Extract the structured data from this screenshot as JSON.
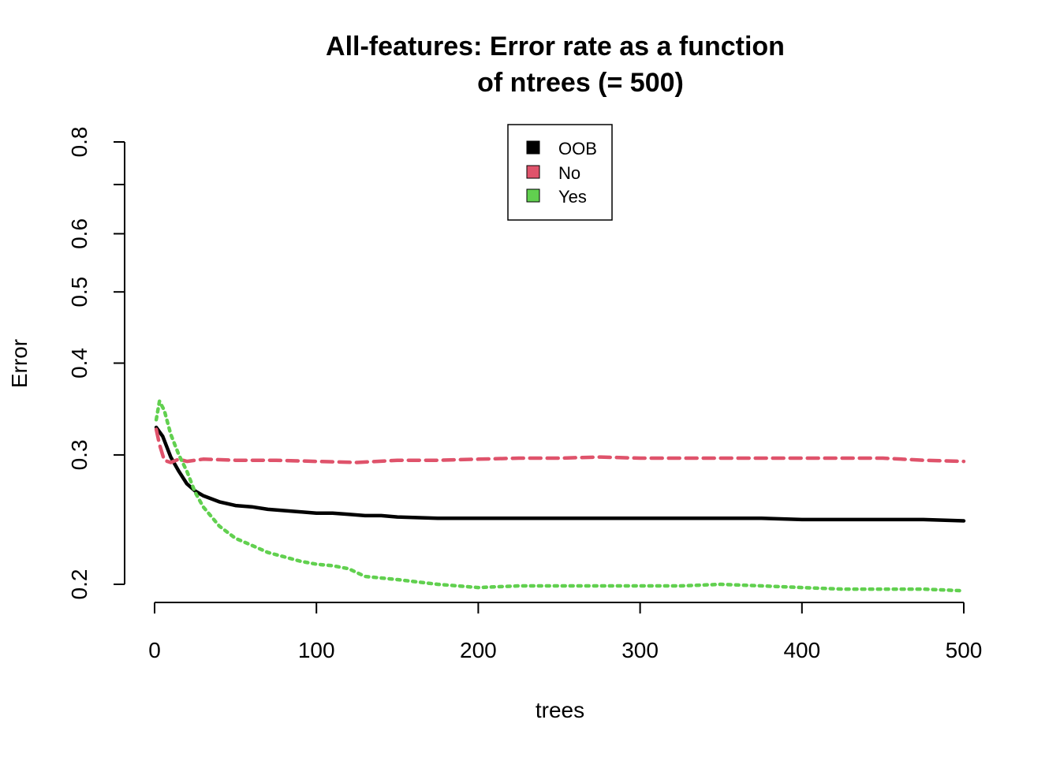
{
  "chart_data": {
    "type": "line",
    "title_lines": [
      "All-features: Error rate as a function",
      "of  ntrees (= 500)"
    ],
    "xlabel": "trees",
    "ylabel": "Error",
    "xlim": [
      0,
      500
    ],
    "ylim": [
      0.2,
      0.8
    ],
    "y_scale": "log",
    "x_ticks": [
      0,
      100,
      200,
      300,
      400,
      500
    ],
    "x_tick_labels": [
      "0",
      "100",
      "200",
      "300",
      "400",
      "500"
    ],
    "y_ticks": [
      0.2,
      0.3,
      0.4,
      0.5,
      0.6,
      0.7,
      0.8
    ],
    "y_tick_labels": [
      "0.2",
      "0.3",
      "0.4",
      "0.5",
      "0.6",
      "",
      "0.8"
    ],
    "legend_position": "top-center",
    "grid": false,
    "series": [
      {
        "name": "OOB",
        "color": "#000000",
        "line_style": "solid",
        "x": [
          1,
          5,
          10,
          15,
          20,
          25,
          30,
          40,
          50,
          60,
          70,
          80,
          90,
          100,
          110,
          120,
          130,
          140,
          150,
          175,
          200,
          225,
          250,
          275,
          300,
          325,
          350,
          375,
          400,
          425,
          450,
          475,
          500
        ],
        "values": [
          0.327,
          0.318,
          0.298,
          0.285,
          0.274,
          0.268,
          0.264,
          0.259,
          0.256,
          0.255,
          0.253,
          0.252,
          0.251,
          0.25,
          0.25,
          0.249,
          0.248,
          0.248,
          0.247,
          0.246,
          0.246,
          0.246,
          0.246,
          0.246,
          0.246,
          0.246,
          0.246,
          0.246,
          0.245,
          0.245,
          0.245,
          0.245,
          0.244
        ]
      },
      {
        "name": "No",
        "color": "#DF536B",
        "line_style": "dashed",
        "x": [
          1,
          3,
          6,
          10,
          15,
          20,
          30,
          50,
          75,
          100,
          125,
          150,
          175,
          200,
          225,
          250,
          275,
          300,
          325,
          350,
          375,
          400,
          425,
          450,
          475,
          500
        ],
        "values": [
          0.325,
          0.31,
          0.295,
          0.293,
          0.296,
          0.294,
          0.296,
          0.295,
          0.295,
          0.294,
          0.293,
          0.295,
          0.295,
          0.296,
          0.297,
          0.297,
          0.298,
          0.297,
          0.297,
          0.297,
          0.297,
          0.297,
          0.297,
          0.297,
          0.295,
          0.294
        ]
      },
      {
        "name": "Yes",
        "color": "#61D04F",
        "line_style": "dotted",
        "x": [
          1,
          3,
          6,
          10,
          15,
          20,
          25,
          30,
          40,
          50,
          60,
          70,
          80,
          90,
          100,
          110,
          120,
          130,
          150,
          175,
          200,
          225,
          250,
          275,
          300,
          325,
          350,
          375,
          400,
          425,
          450,
          475,
          500
        ],
        "values": [
          0.335,
          0.355,
          0.345,
          0.32,
          0.3,
          0.285,
          0.267,
          0.255,
          0.24,
          0.231,
          0.226,
          0.221,
          0.218,
          0.215,
          0.213,
          0.212,
          0.21,
          0.205,
          0.203,
          0.2,
          0.198,
          0.199,
          0.199,
          0.199,
          0.199,
          0.199,
          0.2,
          0.199,
          0.198,
          0.197,
          0.197,
          0.197,
          0.196
        ]
      }
    ]
  }
}
